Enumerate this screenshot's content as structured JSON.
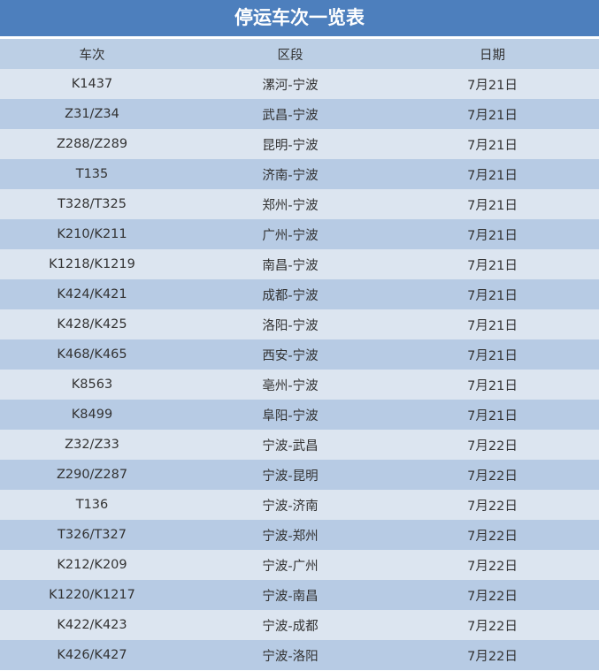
{
  "title": "停运车次一览表",
  "headers": [
    "车次",
    "区段",
    "日期"
  ],
  "rows": [
    [
      "K1437",
      "漯河-宁波",
      "7月21日"
    ],
    [
      "Z31/Z34",
      "武昌-宁波",
      "7月21日"
    ],
    [
      "Z288/Z289",
      "昆明-宁波",
      "7月21日"
    ],
    [
      "T135",
      "济南-宁波",
      "7月21日"
    ],
    [
      "T328/T325",
      "郑州-宁波",
      "7月21日"
    ],
    [
      "K210/K211",
      "广州-宁波",
      "7月21日"
    ],
    [
      "K1218/K1219",
      "南昌-宁波",
      "7月21日"
    ],
    [
      "K424/K421",
      "成都-宁波",
      "7月21日"
    ],
    [
      "K428/K425",
      "洛阳-宁波",
      "7月21日"
    ],
    [
      "K468/K465",
      "西安-宁波",
      "7月21日"
    ],
    [
      "K8563",
      "亳州-宁波",
      "7月21日"
    ],
    [
      "K8499",
      "阜阳-宁波",
      "7月21日"
    ],
    [
      "Z32/Z33",
      "宁波-武昌",
      "7月22日"
    ],
    [
      "Z290/Z287",
      "宁波-昆明",
      "7月22日"
    ],
    [
      "T136",
      "宁波-济南",
      "7月22日"
    ],
    [
      "T326/T327",
      "宁波-郑州",
      "7月22日"
    ],
    [
      "K212/K209",
      "宁波-广州",
      "7月22日"
    ],
    [
      "K1220/K1217",
      "宁波-南昌",
      "7月22日"
    ],
    [
      "K422/K423",
      "宁波-成都",
      "7月22日"
    ],
    [
      "K426/K427",
      "宁波-洛阳",
      "7月22日"
    ]
  ],
  "colors": {
    "title_bg": "#4d7fbd",
    "header_bg": "#bccfe5",
    "row_light": "#dce5f0",
    "row_dark": "#b7cbe4"
  }
}
